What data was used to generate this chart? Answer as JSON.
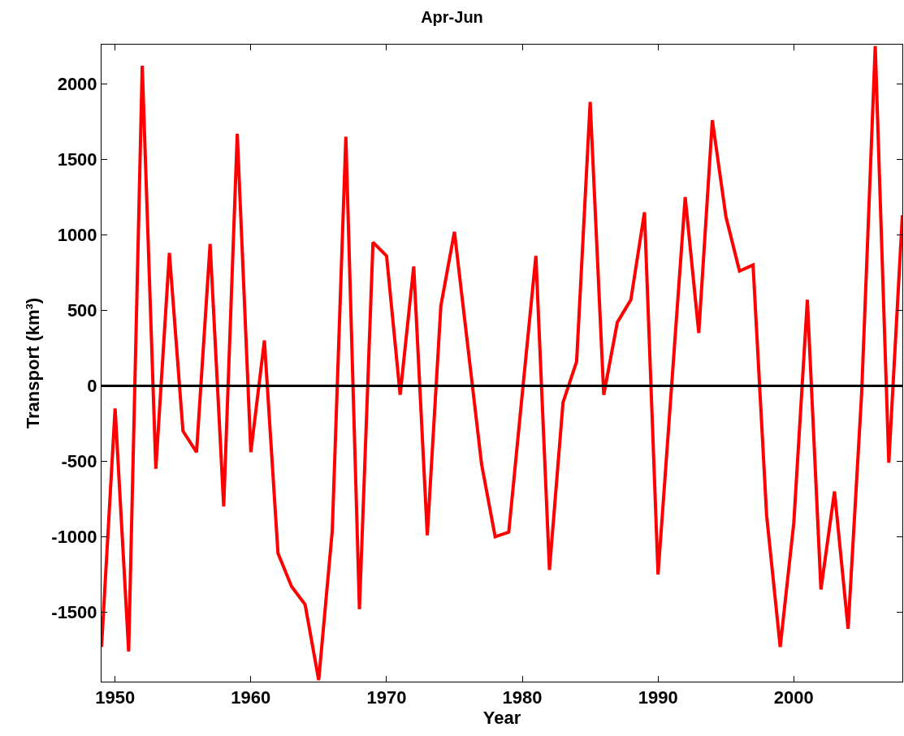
{
  "chart_data": {
    "type": "line",
    "title": "Apr-Jun",
    "xlabel": "Year",
    "ylabel": "Transport (km³)",
    "x": [
      1949,
      1950,
      1951,
      1952,
      1953,
      1954,
      1955,
      1956,
      1957,
      1958,
      1959,
      1960,
      1961,
      1962,
      1963,
      1964,
      1965,
      1966,
      1967,
      1968,
      1969,
      1970,
      1971,
      1972,
      1973,
      1974,
      1975,
      1976,
      1977,
      1978,
      1979,
      1980,
      1981,
      1982,
      1983,
      1984,
      1985,
      1986,
      1987,
      1988,
      1989,
      1990,
      1991,
      1992,
      1993,
      1994,
      1995,
      1996,
      1997,
      1998,
      1999,
      2000,
      2001,
      2002,
      2003,
      2004,
      2005,
      2006,
      2007,
      2008
    ],
    "series": [
      {
        "color": "#ff0000",
        "values": [
          -1730,
          -150,
          -1760,
          2120,
          -550,
          880,
          -300,
          -440,
          940,
          -800,
          1670,
          -440,
          300,
          -1110,
          -1330,
          -1450,
          -1950,
          -960,
          1650,
          -1480,
          950,
          860,
          -60,
          790,
          -990,
          530,
          1020,
          250,
          -520,
          -1000,
          -970,
          -50,
          860,
          -1220,
          -110,
          160,
          1880,
          -60,
          420,
          570,
          1150,
          -1250,
          0,
          1250,
          350,
          1760,
          1120,
          760,
          800,
          -860,
          -1730,
          -910,
          570,
          -1350,
          -700,
          -1610,
          -50,
          2250,
          -510,
          1130
        ]
      }
    ],
    "xlim": [
      1949,
      2008
    ],
    "ylim": [
      -1960,
      2260
    ],
    "xticks": [
      1950,
      1960,
      1970,
      1980,
      1990,
      2000
    ],
    "yticks": [
      -1500,
      -1000,
      -500,
      0,
      500,
      1000,
      1500,
      2000
    ],
    "ref_lines": [
      {
        "axis": "y",
        "value": 0,
        "color": "#000000",
        "line_style": "solid"
      }
    ],
    "legend": false,
    "marker": "none",
    "line_style": "solid"
  }
}
